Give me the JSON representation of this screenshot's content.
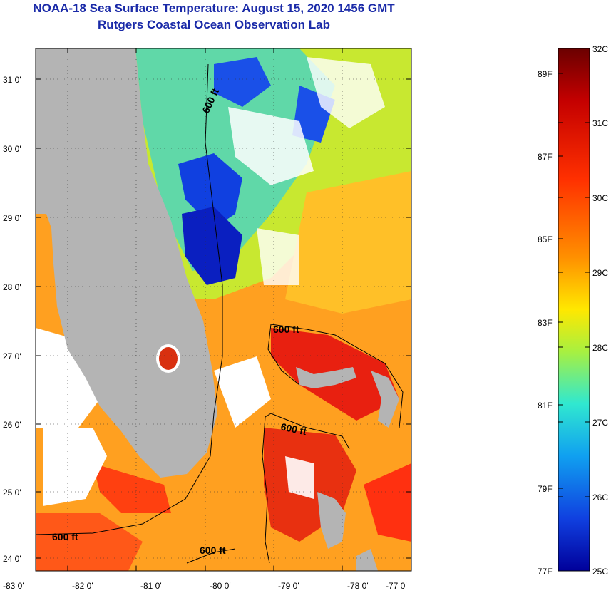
{
  "title": "NOAA-18 Sea Surface Temperature:  August 15, 2020 1456 GMT",
  "subtitle": "Rutgers Coastal Ocean Observation Lab",
  "axes": {
    "lon_labels": [
      "-83 0'",
      "-82 0'",
      "-81 0'",
      "-80 0'",
      "-79 0'",
      "-78 0'",
      "-77 0'"
    ],
    "lat_labels": [
      "31 0'",
      "30 0'",
      "29 0'",
      "28 0'",
      "27 0'",
      "26 0'",
      "25 0'",
      "24 0'"
    ]
  },
  "contours": {
    "label_a": "600 ft",
    "label_b": "600 ft",
    "label_c": "600 ft",
    "label_d": "600 ft",
    "label_e": "600 ft"
  },
  "colorbar": {
    "celsius_labels": [
      "32C",
      "31C",
      "30C",
      "29C",
      "28C",
      "27C",
      "26C",
      "25C"
    ],
    "fahrenheit_labels": [
      "89F",
      "87F",
      "85F",
      "83F",
      "81F",
      "79F",
      "77F"
    ],
    "colors": [
      "#6b0000",
      "#c40000",
      "#ff3000",
      "#ff9000",
      "#ffe800",
      "#a8f040",
      "#30e8d0",
      "#10a0f0",
      "#1040e0",
      "#00009a"
    ]
  },
  "colors": {
    "land": "#b4b4b4",
    "cloud": "#ffffff",
    "title": "#1a2aa8"
  }
}
